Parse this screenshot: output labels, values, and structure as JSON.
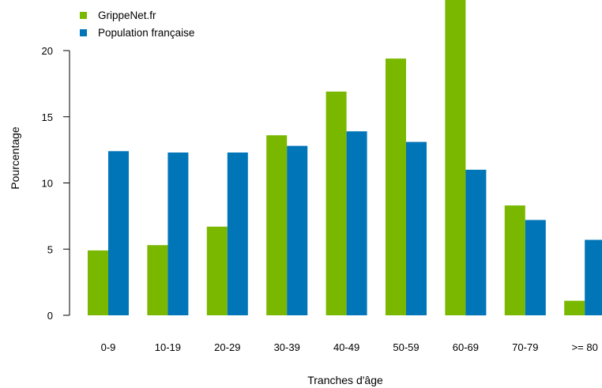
{
  "chart_data": {
    "type": "bar",
    "title": "",
    "xlabel": "Tranches d'âge",
    "ylabel": "Pourcentage",
    "categories": [
      "0-9",
      "10-19",
      "20-29",
      "30-39",
      "40-49",
      "50-59",
      "60-69",
      "70-79",
      ">= 80"
    ],
    "series": [
      {
        "name": "GrippeNet.fr",
        "color": "#7ab800",
        "values": [
          4.9,
          5.3,
          6.7,
          13.6,
          16.9,
          19.4,
          24.3,
          8.3,
          1.1
        ]
      },
      {
        "name": "Population française",
        "color": "#0075b8",
        "values": [
          12.4,
          12.3,
          12.3,
          12.8,
          13.9,
          13.1,
          11.0,
          7.2,
          5.7
        ]
      }
    ],
    "yticks": [
      0,
      5,
      10,
      15,
      20
    ],
    "ylim": [
      0,
      24.3
    ],
    "grid": false,
    "legend_position": "top-left"
  }
}
